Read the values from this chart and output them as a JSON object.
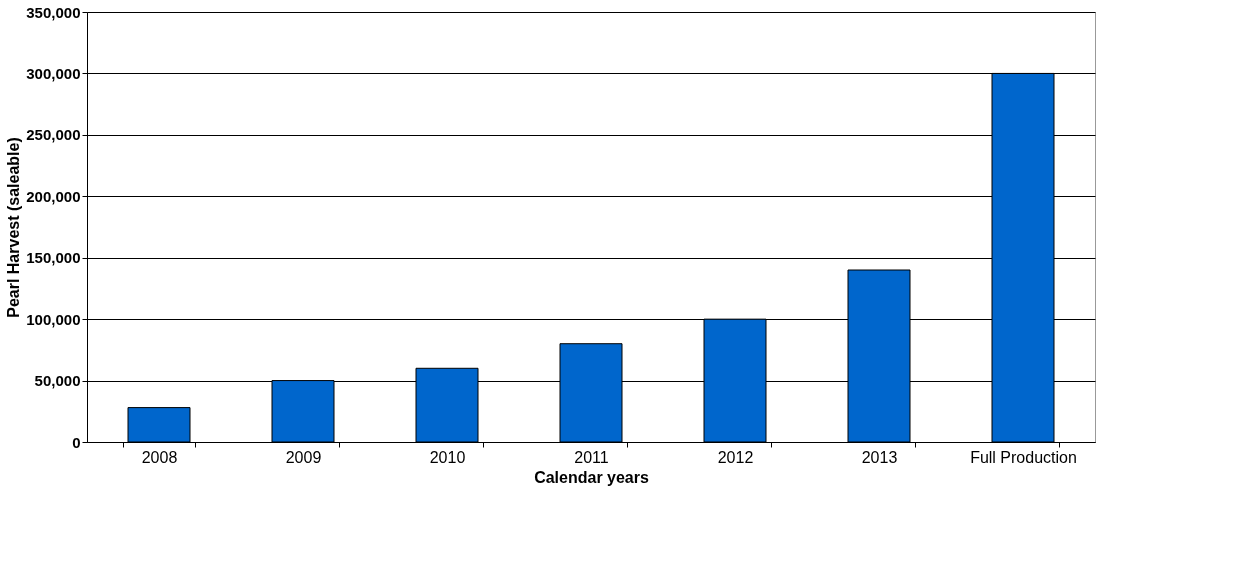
{
  "chart_data": {
    "type": "bar",
    "xlabel": "Calendar years",
    "ylabel": "Pearl Harvest (saleable)",
    "categories": [
      "2008",
      "2009",
      "2010",
      "2011",
      "2012",
      "2013",
      "Full Production"
    ],
    "values": [
      28000,
      50000,
      60000,
      80000,
      100000,
      140000,
      300000
    ],
    "color": "#0066cc",
    "ylim": [
      0,
      350000
    ],
    "yticks": [
      0,
      {
        "value": 50000,
        "label": "50,000"
      },
      {
        "value": 100000,
        "label": "100,000"
      },
      {
        "value": 150000,
        "label": "150,000"
      },
      {
        "value": 200000,
        "label": "200,000"
      },
      {
        "value": 250000,
        "label": "250,000"
      },
      {
        "value": 300000,
        "label": "300,000"
      },
      {
        "value": 350000,
        "label": "350,000"
      }
    ],
    "grid": "y"
  }
}
